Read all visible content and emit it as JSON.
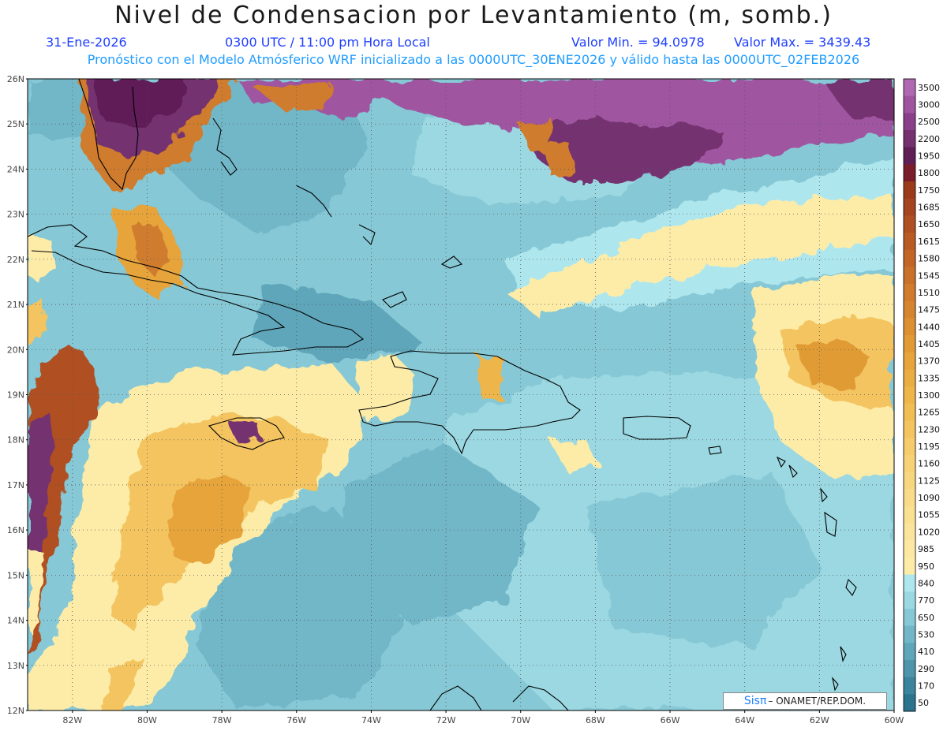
{
  "header": {
    "title": "Nivel de Condensacion por Levantamiento (m, somb.)",
    "date": "31-Ene-2026",
    "time": "0300 UTC / 11:00 pm Hora Local",
    "min_label": "Valor Min. = 94.0978",
    "max_label": "Valor Max. = 3439.43",
    "model_line": "Pronóstico con el Modelo Atmósferico WRF inicializado a las 0000UTC_30ENE2026 y válido hasta las  0000UTC_02FEB2026"
  },
  "map": {
    "lat_labels": [
      "26N",
      "25N",
      "24N",
      "23N",
      "22N",
      "21N",
      "20N",
      "19N",
      "18N",
      "17N",
      "16N",
      "15N",
      "14N",
      "13N",
      "12N"
    ],
    "lon_labels": [
      "82W",
      "80W",
      "78W",
      "76W",
      "74W",
      "72W",
      "70W",
      "68W",
      "66W",
      "64W",
      "62W",
      "60W"
    ],
    "lat_range": [
      12,
      26
    ],
    "lon_range": [
      -83.2,
      -60
    ],
    "grid": "dotted"
  },
  "legend": {
    "levels": [
      "3500",
      "3000",
      "2500",
      "2200",
      "1950",
      "1800",
      "1750",
      "1685",
      "1650",
      "1615",
      "1580",
      "1545",
      "1510",
      "1475",
      "1440",
      "1405",
      "1370",
      "1335",
      "1300",
      "1265",
      "1230",
      "1195",
      "1160",
      "1125",
      "1090",
      "1055",
      "1020",
      "985",
      "950",
      "840",
      "770",
      "650",
      "530",
      "410",
      "290",
      "170",
      "50"
    ],
    "colors": [
      "#b068b2",
      "#9f549f",
      "#8a3f8a",
      "#74306f",
      "#5f1f56",
      "#7a1c2a",
      "#9c3a1c",
      "#a5441f",
      "#b04f22",
      "#b95a24",
      "#c26527",
      "#c9702a",
      "#d07b2d",
      "#d6852f",
      "#dc9032",
      "#e19b36",
      "#e6a43b",
      "#eaad42",
      "#eeb54b",
      "#f1bd55",
      "#f3c460",
      "#f5cb6b",
      "#f7d176",
      "#f8d680",
      "#f9db8a",
      "#fae093",
      "#fbe49b",
      "#fce8a2",
      "#fdeca8",
      "#aee6ee",
      "#9bd8e2",
      "#86c8d5",
      "#72b7c8",
      "#5fa6ba",
      "#4e95ac",
      "#3c849d",
      "#2c738e"
    ]
  },
  "credit": {
    "logo": "Sisπ",
    "text": "– ONAMET/REP.DOM."
  }
}
